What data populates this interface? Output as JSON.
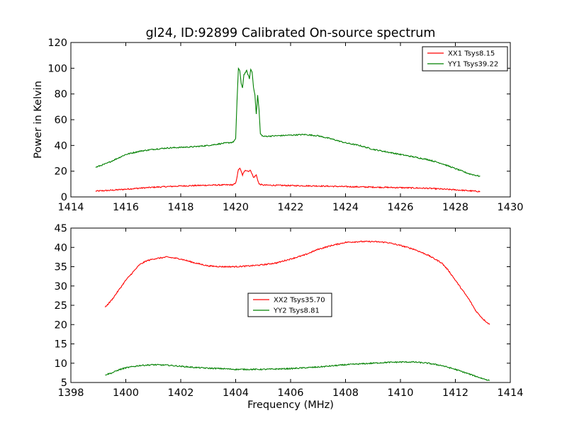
{
  "figure": {
    "title": "gl24, ID:92899 Calibrated On-source spectrum",
    "xlabel": "Frequency (MHz)"
  },
  "chart_data": [
    {
      "type": "line",
      "title": "gl24, ID:92899 Calibrated On-source spectrum",
      "ylabel": "Power in Kelvin",
      "xlim": [
        1414,
        1430
      ],
      "ylim": [
        0,
        120
      ],
      "xticks": [
        "1414",
        "1416",
        "1418",
        "1420",
        "1422",
        "1424",
        "1426",
        "1428",
        "1430"
      ],
      "yticks": [
        "0",
        "20",
        "40",
        "60",
        "80",
        "100",
        "120"
      ],
      "grid": false,
      "legend_position": "top-right",
      "series": [
        {
          "name": "XX1 Tsys8.15",
          "color": "#ff0000",
          "points": [
            [
              1414.9,
              4.5
            ],
            [
              1415.5,
              5.2
            ],
            [
              1416,
              6.0
            ],
            [
              1416.5,
              6.8
            ],
            [
              1417,
              7.5
            ],
            [
              1417.5,
              8.0
            ],
            [
              1418,
              8.5
            ],
            [
              1418.5,
              8.8
            ],
            [
              1419,
              9.1
            ],
            [
              1419.5,
              9.3
            ],
            [
              1419.9,
              9.4
            ],
            [
              1420.0,
              10.5
            ],
            [
              1420.1,
              21
            ],
            [
              1420.15,
              22.5
            ],
            [
              1420.25,
              17
            ],
            [
              1420.35,
              21
            ],
            [
              1420.45,
              20
            ],
            [
              1420.55,
              20.5
            ],
            [
              1420.65,
              15
            ],
            [
              1420.75,
              17
            ],
            [
              1420.85,
              10
            ],
            [
              1421,
              9.2
            ],
            [
              1421.5,
              9.0
            ],
            [
              1422,
              8.8
            ],
            [
              1423,
              8.5
            ],
            [
              1424,
              8.0
            ],
            [
              1425,
              7.6
            ],
            [
              1426,
              7.2
            ],
            [
              1427,
              6.7
            ],
            [
              1428,
              5.5
            ],
            [
              1428.9,
              4.2
            ]
          ]
        },
        {
          "name": "YY1 Tsys39.22",
          "color": "#008000",
          "points": [
            [
              1414.9,
              23
            ],
            [
              1415.3,
              26
            ],
            [
              1415.7,
              30
            ],
            [
              1416,
              33
            ],
            [
              1416.5,
              35.5
            ],
            [
              1417,
              37
            ],
            [
              1417.5,
              38
            ],
            [
              1418,
              38.5
            ],
            [
              1418.5,
              39
            ],
            [
              1419,
              40
            ],
            [
              1419.5,
              41.5
            ],
            [
              1419.9,
              42.5
            ],
            [
              1420.0,
              45
            ],
            [
              1420.05,
              75
            ],
            [
              1420.1,
              100
            ],
            [
              1420.15,
              98
            ],
            [
              1420.2,
              88
            ],
            [
              1420.25,
              85
            ],
            [
              1420.3,
              95
            ],
            [
              1420.4,
              98
            ],
            [
              1420.5,
              92
            ],
            [
              1420.55,
              99
            ],
            [
              1420.6,
              97
            ],
            [
              1420.65,
              85
            ],
            [
              1420.7,
              80
            ],
            [
              1420.75,
              64
            ],
            [
              1420.8,
              79
            ],
            [
              1420.85,
              68
            ],
            [
              1420.9,
              49
            ],
            [
              1421,
              47
            ],
            [
              1421.5,
              47.5
            ],
            [
              1422,
              48
            ],
            [
              1422.5,
              48.5
            ],
            [
              1423,
              47.5
            ],
            [
              1423.5,
              45
            ],
            [
              1424,
              42
            ],
            [
              1424.5,
              40
            ],
            [
              1425,
              37
            ],
            [
              1425.5,
              35
            ],
            [
              1426,
              33
            ],
            [
              1426.5,
              31
            ],
            [
              1427,
              29
            ],
            [
              1427.5,
              26
            ],
            [
              1428,
              22
            ],
            [
              1428.5,
              18
            ],
            [
              1428.9,
              16
            ]
          ]
        }
      ]
    },
    {
      "type": "line",
      "xlabel": "Frequency (MHz)",
      "ylabel": "",
      "xlim": [
        1398,
        1414
      ],
      "ylim": [
        5,
        45
      ],
      "xticks": [
        "1398",
        "1400",
        "1402",
        "1404",
        "1406",
        "1408",
        "1410",
        "1412",
        "1414"
      ],
      "yticks": [
        "5",
        "10",
        "15",
        "20",
        "25",
        "30",
        "35",
        "40",
        "45"
      ],
      "grid": false,
      "legend_position": "center",
      "series": [
        {
          "name": "XX2 Tsys35.70",
          "color": "#ff0000",
          "points": [
            [
              1399.25,
              24.5
            ],
            [
              1399.5,
              26.5
            ],
            [
              1399.75,
              29
            ],
            [
              1400,
              31.5
            ],
            [
              1400.25,
              33.5
            ],
            [
              1400.5,
              35.5
            ],
            [
              1400.75,
              36.5
            ],
            [
              1401,
              37
            ],
            [
              1401.5,
              37.5
            ],
            [
              1402,
              37
            ],
            [
              1402.5,
              36
            ],
            [
              1403,
              35.2
            ],
            [
              1403.5,
              35
            ],
            [
              1404,
              35
            ],
            [
              1404.5,
              35.2
            ],
            [
              1405,
              35.5
            ],
            [
              1405.5,
              36
            ],
            [
              1406,
              37
            ],
            [
              1406.5,
              38
            ],
            [
              1407,
              39.5
            ],
            [
              1407.5,
              40.5
            ],
            [
              1408,
              41.3
            ],
            [
              1408.5,
              41.5
            ],
            [
              1409,
              41.5
            ],
            [
              1409.5,
              41.3
            ],
            [
              1410,
              40.5
            ],
            [
              1410.5,
              39.5
            ],
            [
              1411,
              38
            ],
            [
              1411.5,
              36
            ],
            [
              1411.75,
              34
            ],
            [
              1412,
              31.5
            ],
            [
              1412.25,
              29
            ],
            [
              1412.5,
              26.5
            ],
            [
              1412.75,
              23.5
            ],
            [
              1413,
              21.5
            ],
            [
              1413.25,
              20
            ]
          ]
        },
        {
          "name": "YY2 Tsys8.81",
          "color": "#008000",
          "points": [
            [
              1399.25,
              7
            ],
            [
              1399.5,
              7.5
            ],
            [
              1399.75,
              8.3
            ],
            [
              1400,
              8.8
            ],
            [
              1400.5,
              9.4
            ],
            [
              1401,
              9.6
            ],
            [
              1401.5,
              9.5
            ],
            [
              1402,
              9.2
            ],
            [
              1402.5,
              8.9
            ],
            [
              1403,
              8.7
            ],
            [
              1403.5,
              8.6
            ],
            [
              1404,
              8.4
            ],
            [
              1404.5,
              8.4
            ],
            [
              1405,
              8.4
            ],
            [
              1405.5,
              8.5
            ],
            [
              1406,
              8.6
            ],
            [
              1406.5,
              8.8
            ],
            [
              1407,
              9.0
            ],
            [
              1407.5,
              9.3
            ],
            [
              1408,
              9.6
            ],
            [
              1408.5,
              9.8
            ],
            [
              1409,
              10.0
            ],
            [
              1409.5,
              10.2
            ],
            [
              1410,
              10.3
            ],
            [
              1410.5,
              10.3
            ],
            [
              1411,
              10.0
            ],
            [
              1411.5,
              9.4
            ],
            [
              1412,
              8.4
            ],
            [
              1412.5,
              7.2
            ],
            [
              1413,
              6.0
            ],
            [
              1413.25,
              5.5
            ]
          ]
        }
      ]
    }
  ]
}
